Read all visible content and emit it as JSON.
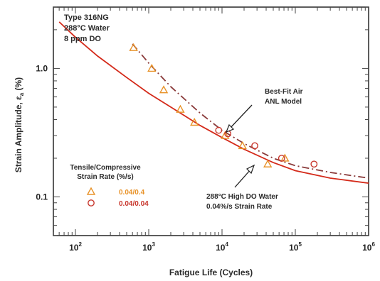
{
  "chart_data": {
    "type": "scatter",
    "xscale": "log",
    "yscale": "log",
    "xlim": [
      50,
      1000000
    ],
    "ylim": [
      0.05,
      3
    ],
    "xlabel": "Fatigue Life (Cycles)",
    "ylabel_prefix": "Strain Amplitude, ε",
    "ylabel_sub": "a",
    "ylabel_suffix": " (%)",
    "x_ticks": [
      {
        "value": 100,
        "base": "10",
        "exp": "2"
      },
      {
        "value": 1000,
        "base": "10",
        "exp": "3"
      },
      {
        "value": 10000,
        "base": "10",
        "exp": "4"
      },
      {
        "value": 100000,
        "base": "10",
        "exp": "5"
      },
      {
        "value": 1000000,
        "base": "10",
        "exp": "6"
      }
    ],
    "y_ticks": [
      {
        "value": 0.1,
        "label": "0.1"
      },
      {
        "value": 1.0,
        "label": "1.0"
      }
    ],
    "info_lines": [
      "Type 316NG",
      "288°C Water",
      "8 ppm  DO"
    ],
    "legend": {
      "title_lines": [
        "Tensile/Compressive",
        "Strain Rate (%/s)"
      ],
      "entries": [
        {
          "marker": "triangle",
          "label": "0.04/0.4",
          "color": "#e8932a"
        },
        {
          "marker": "circle",
          "label": "0.04/0.04",
          "color": "#c8372d"
        }
      ]
    },
    "annotations": [
      {
        "lines": [
          "Best-Fit Air",
          "ANL Model"
        ]
      },
      {
        "lines": [
          "288°C High DO Water",
          "0.04%/s Strain Rate"
        ]
      }
    ],
    "series": [
      {
        "name": "0.04/0.4",
        "marker": "triangle",
        "color": "#e8932a",
        "points": [
          {
            "x": 620,
            "y": 1.45
          },
          {
            "x": 1100,
            "y": 1.0
          },
          {
            "x": 1600,
            "y": 0.68
          },
          {
            "x": 2700,
            "y": 0.48
          },
          {
            "x": 4200,
            "y": 0.38
          },
          {
            "x": 11000,
            "y": 0.3
          },
          {
            "x": 19000,
            "y": 0.25
          },
          {
            "x": 42000,
            "y": 0.18
          },
          {
            "x": 72000,
            "y": 0.2
          }
        ]
      },
      {
        "name": "0.04/0.04",
        "marker": "circle",
        "color": "#c8372d",
        "points": [
          {
            "x": 9000,
            "y": 0.33
          },
          {
            "x": 12000,
            "y": 0.31
          },
          {
            "x": 28000,
            "y": 0.25
          },
          {
            "x": 65000,
            "y": 0.2
          },
          {
            "x": 180000,
            "y": 0.18
          }
        ]
      }
    ],
    "curves": [
      {
        "label": "Best-Fit Air ANL Model",
        "style": "dash-dot",
        "color": "#8a3a3a",
        "points": [
          [
            600,
            1.55
          ],
          [
            1000,
            1.1
          ],
          [
            2000,
            0.72
          ],
          [
            5000,
            0.45
          ],
          [
            10000,
            0.33
          ],
          [
            20000,
            0.26
          ],
          [
            50000,
            0.2
          ],
          [
            100000,
            0.175
          ],
          [
            300000,
            0.155
          ],
          [
            1000000,
            0.14
          ]
        ]
      },
      {
        "label": "288°C High DO Water 0.04%/s Strain Rate",
        "style": "solid",
        "color": "#d42a1a",
        "points": [
          [
            60,
            2.3
          ],
          [
            100,
            1.75
          ],
          [
            200,
            1.25
          ],
          [
            500,
            0.85
          ],
          [
            1000,
            0.64
          ],
          [
            2000,
            0.5
          ],
          [
            5000,
            0.36
          ],
          [
            10000,
            0.29
          ],
          [
            20000,
            0.235
          ],
          [
            50000,
            0.185
          ],
          [
            100000,
            0.16
          ],
          [
            300000,
            0.14
          ],
          [
            1000000,
            0.128
          ]
        ]
      }
    ],
    "grid": false
  }
}
